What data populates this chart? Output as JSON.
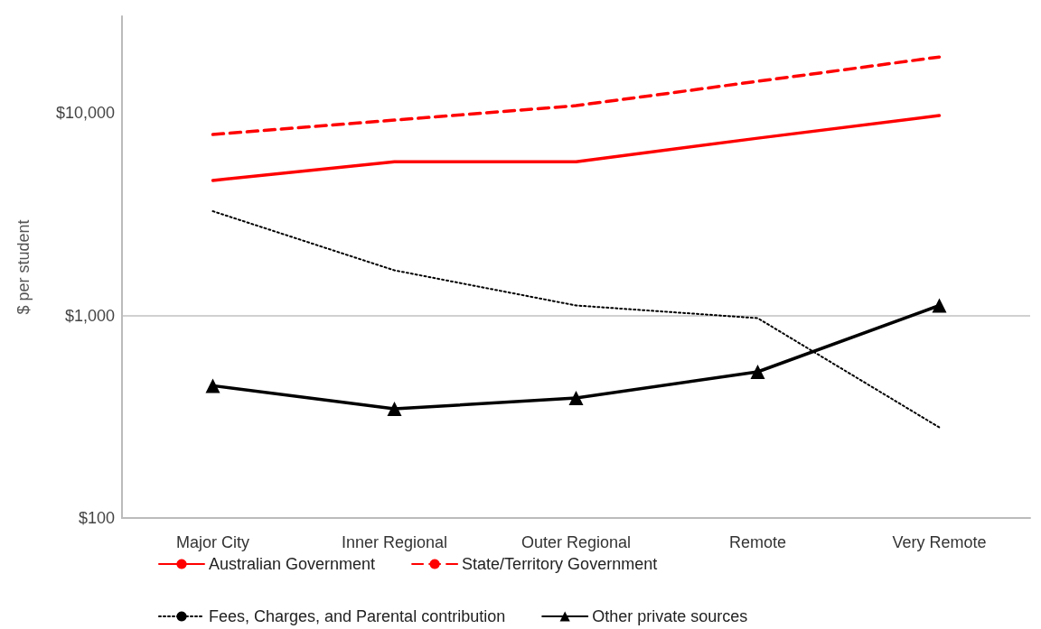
{
  "chart_data": {
    "type": "line",
    "ylabel": "$ per student",
    "categories": [
      "Major City",
      "Inner Regional",
      "Outer Regional",
      "Remote",
      "Very Remote"
    ],
    "series": [
      {
        "name": "Australian Government",
        "color": "#ff0000",
        "line_style": "solid",
        "marker": "none",
        "values": [
          4640,
          5740,
          5740,
          7500,
          9700
        ]
      },
      {
        "name": "State/Territory Government",
        "color": "#ff0000",
        "line_style": "dashed",
        "marker": "none",
        "values": [
          7820,
          9210,
          10860,
          14320,
          18880
        ]
      },
      {
        "name": "Fees, Charges, and Parental contribution",
        "color": "#000000",
        "line_style": "dotted",
        "marker": "none",
        "values": [
          3270,
          1670,
          1120,
          970,
          280
        ]
      },
      {
        "name": "Other private sources",
        "color": "#000000",
        "line_style": "solid",
        "marker": "triangle",
        "values": [
          450,
          346,
          391,
          527,
          1120
        ]
      }
    ],
    "log": "y",
    "ylim": [
      100,
      30000
    ],
    "yticks": [
      {
        "value": 100,
        "label": "$100"
      },
      {
        "value": 1000,
        "label": "$1,000"
      },
      {
        "value": 10000,
        "label": "$10,000"
      }
    ],
    "grid": "y",
    "legend": "bottom"
  }
}
